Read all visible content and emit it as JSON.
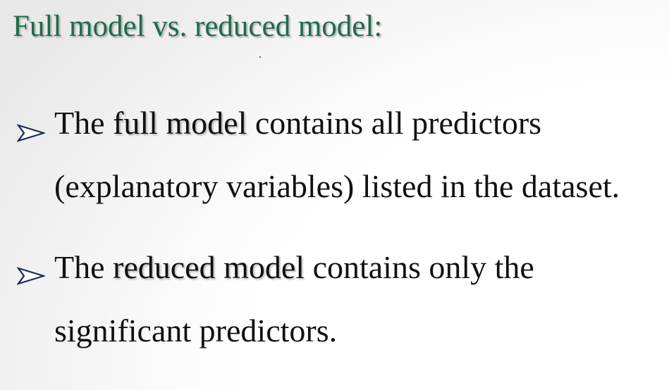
{
  "slide": {
    "title": "Full model vs. reduced model:",
    "bullets": [
      {
        "icon": "arrow-bullet-icon",
        "lead": "The ",
        "highlight": "full model",
        "rest": " contains all predictors",
        "line2": "(explanatory variables) listed in the dataset."
      },
      {
        "icon": "arrow-bullet-icon",
        "lead": "The ",
        "highlight": "reduced model",
        "rest": " contains only the",
        "line2": "significant predictors."
      }
    ]
  },
  "colors": {
    "title": "#1f6b4a",
    "text": "#111111",
    "arrow_outline": "#1a2a55"
  }
}
